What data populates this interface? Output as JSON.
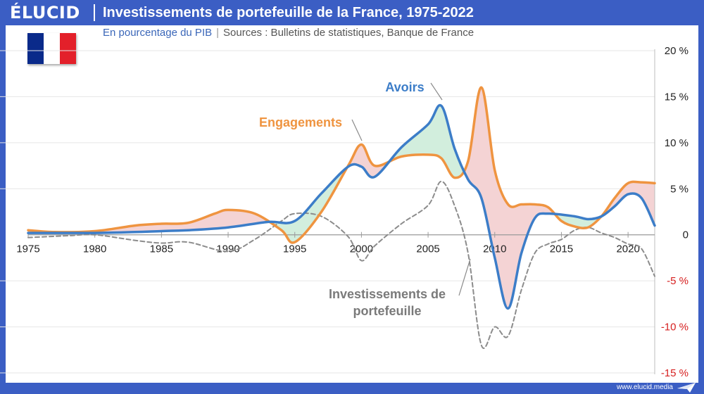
{
  "header": {
    "logo": "ÉLUCID",
    "title": "Investissements de portefeuille de la France, 1975-2022"
  },
  "subtitle": {
    "unit": "En pourcentage du PIB",
    "separator": "|",
    "source": "Sources : Bulletins de statistiques, Banque de France"
  },
  "footer": {
    "site": "www.elucid.media"
  },
  "colors": {
    "brand": "#3b5ec4",
    "avoirs": "#3c7dc8",
    "engagements": "#ef9440",
    "investissements": "#8c8c8c",
    "fill_positive": "#d2eedd",
    "fill_negative": "#f4d3d4",
    "negative_tick": "#d62020",
    "flag_blue": "#0a2a8a",
    "flag_white": "#ffffff",
    "flag_red": "#e3202a"
  },
  "chart_data": {
    "type": "line",
    "x_ticks": [
      1975,
      1980,
      1985,
      1990,
      1995,
      2000,
      2005,
      2010,
      2015,
      2020
    ],
    "y_ticks": [
      {
        "value": 20,
        "label": "20 %"
      },
      {
        "value": 15,
        "label": "15 %"
      },
      {
        "value": 10,
        "label": "10 %"
      },
      {
        "value": 5,
        "label": "5 %"
      },
      {
        "value": 0,
        "label": "0"
      },
      {
        "value": -5,
        "label": "-5 %"
      },
      {
        "value": -10,
        "label": "-10 %"
      },
      {
        "value": -15,
        "label": "-15 %"
      }
    ],
    "xlim": [
      1975,
      2022
    ],
    "ylim": [
      -15,
      20
    ],
    "grid": true,
    "series": [
      {
        "name": "Avoirs",
        "key": "avoirs",
        "label_lines": [
          "Avoirs"
        ],
        "x": [
          1975,
          1977,
          1980,
          1983,
          1985,
          1987,
          1990,
          1993,
          1995,
          1997,
          1999,
          2000,
          2001,
          2003,
          2005,
          2006,
          2007,
          2008,
          2009,
          2010,
          2011,
          2012,
          2013,
          2014,
          2016,
          2017,
          2018,
          2019,
          2020,
          2021,
          2022
        ],
        "values": [
          0.2,
          0.2,
          0.2,
          0.3,
          0.4,
          0.5,
          0.8,
          1.4,
          1.5,
          4.5,
          7.4,
          7.4,
          6.3,
          9.5,
          12.0,
          14.0,
          9.3,
          6.0,
          4.0,
          -2.5,
          -8.0,
          -2.0,
          1.8,
          2.3,
          2.0,
          1.7,
          2.0,
          3.1,
          4.4,
          4.0,
          1.0
        ]
      },
      {
        "name": "Engagements",
        "key": "engagements",
        "label_lines": [
          "Engagements"
        ],
        "x": [
          1975,
          1977,
          1980,
          1983,
          1985,
          1987,
          1989,
          1990,
          1992,
          1994,
          1995,
          1997,
          1999,
          2000,
          2001,
          2003,
          2005,
          2006,
          2007,
          2008,
          2009,
          2010,
          2011,
          2012,
          2013,
          2014,
          2015,
          2016,
          2017,
          2018,
          2019,
          2020,
          2021,
          2022
        ],
        "values": [
          0.5,
          0.3,
          0.4,
          1.0,
          1.2,
          1.3,
          2.3,
          2.7,
          2.3,
          0.5,
          -0.8,
          2.5,
          7.5,
          9.8,
          7.5,
          8.5,
          8.7,
          8.3,
          6.2,
          8.0,
          16.0,
          7.0,
          3.3,
          3.3,
          3.3,
          3.0,
          1.5,
          0.9,
          0.8,
          2.0,
          4.0,
          5.6,
          5.7,
          5.6
        ]
      },
      {
        "name": "Investissements de portefeuille",
        "key": "investissements",
        "dashed": true,
        "label_lines": [
          "Investissements de",
          "portefeuille"
        ],
        "x": [
          1975,
          1978,
          1980,
          1983,
          1985,
          1987,
          1990,
          1992,
          1994,
          1995,
          1997,
          1999,
          2000,
          2001,
          2003,
          2005,
          2006,
          2007,
          2008,
          2009,
          2010,
          2011,
          2012,
          2013,
          2014,
          2015,
          2016,
          2017,
          2018,
          2019,
          2020,
          2021,
          2022
        ],
        "values": [
          -0.3,
          -0.1,
          0.0,
          -0.6,
          -0.9,
          -0.8,
          -1.8,
          -0.5,
          1.5,
          2.3,
          2.0,
          -0.2,
          -2.8,
          -1.2,
          1.2,
          3.2,
          5.8,
          3.1,
          -2.0,
          -12.0,
          -10.0,
          -11.0,
          -6.0,
          -2.0,
          -1.0,
          -0.5,
          0.5,
          0.8,
          0.2,
          -0.3,
          -1.0,
          -1.5,
          -4.5
        ]
      }
    ]
  }
}
